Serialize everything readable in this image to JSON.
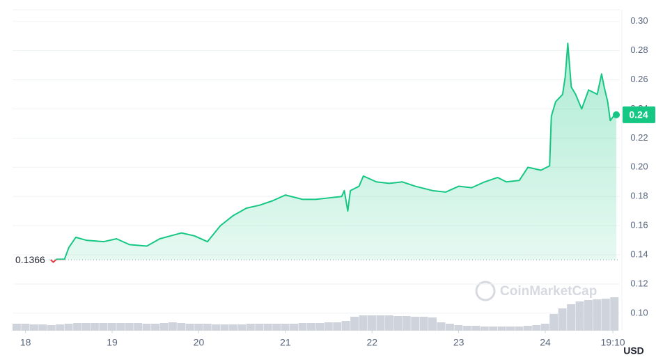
{
  "chart_data": {
    "type": "line",
    "x": [
      18.29,
      18.32,
      18.36,
      18.45,
      18.5,
      18.58,
      18.7,
      18.9,
      19.05,
      19.2,
      19.4,
      19.55,
      19.8,
      19.95,
      20.1,
      20.25,
      20.4,
      20.55,
      20.7,
      20.85,
      21.0,
      21.2,
      21.35,
      21.5,
      21.65,
      21.68,
      21.72,
      21.75,
      21.85,
      21.9,
      22.05,
      22.2,
      22.35,
      22.5,
      22.7,
      22.85,
      23.0,
      23.15,
      23.3,
      23.45,
      23.55,
      23.7,
      23.8,
      23.95,
      24.05,
      24.07,
      24.12,
      24.2,
      24.23,
      24.26,
      24.3,
      24.35,
      24.42,
      24.5,
      24.6,
      24.65,
      24.68,
      24.72,
      24.75,
      24.8,
      24.82
    ],
    "series": [
      {
        "color": "#16c784",
        "values": [
          0.1366,
          0.135,
          0.137,
          0.137,
          0.145,
          0.152,
          0.15,
          0.149,
          0.151,
          0.147,
          0.146,
          0.151,
          0.155,
          0.153,
          0.149,
          0.16,
          0.167,
          0.172,
          0.174,
          0.177,
          0.181,
          0.178,
          0.178,
          0.179,
          0.18,
          0.184,
          0.17,
          0.184,
          0.187,
          0.194,
          0.19,
          0.189,
          0.19,
          0.187,
          0.184,
          0.183,
          0.187,
          0.186,
          0.19,
          0.193,
          0.19,
          0.191,
          0.2,
          0.198,
          0.201,
          0.235,
          0.245,
          0.25,
          0.262,
          0.285,
          0.255,
          0.25,
          0.24,
          0.253,
          0.25,
          0.264,
          0.255,
          0.245,
          0.232,
          0.236,
          0.236
        ]
      }
    ],
    "down_color": "#ea3943",
    "baseline": 0.1366,
    "last_price": {
      "value": 0.236,
      "label": "0.24"
    },
    "ylim": [
      0.088,
      0.308
    ],
    "yticks": [
      {
        "value": 0.1,
        "label": "0.10"
      },
      0.12,
      0.14,
      0.16,
      0.18,
      {
        "value": 0.2,
        "label": "0.20"
      },
      0.22,
      0.24,
      0.26,
      0.28,
      {
        "value": 0.3,
        "label": "0.30"
      }
    ],
    "xlim": [
      17.85,
      24.86
    ],
    "xticks": [
      18,
      19,
      20,
      21,
      22,
      23,
      24,
      {
        "value": 24.78,
        "label": "19:10"
      }
    ],
    "currency": "USD",
    "watermark": "CoinMarketCap",
    "grid": true,
    "volume": {
      "color": "#cfd3dc",
      "x": [
        17.9,
        18.0,
        18.1,
        18.2,
        18.3,
        18.4,
        18.5,
        18.6,
        18.7,
        18.8,
        18.9,
        19.0,
        19.1,
        19.2,
        19.3,
        19.4,
        19.5,
        19.6,
        19.7,
        19.8,
        19.9,
        20.0,
        20.1,
        20.2,
        20.3,
        20.4,
        20.5,
        20.6,
        20.7,
        20.8,
        20.9,
        21.0,
        21.1,
        21.2,
        21.3,
        21.4,
        21.5,
        21.6,
        21.7,
        21.8,
        21.9,
        22.0,
        22.1,
        22.2,
        22.3,
        22.4,
        22.5,
        22.6,
        22.7,
        22.8,
        22.9,
        23.0,
        23.1,
        23.2,
        23.3,
        23.4,
        23.5,
        23.6,
        23.7,
        23.8,
        23.9,
        24.0,
        24.1,
        24.2,
        24.3,
        24.4,
        24.5,
        24.6,
        24.7,
        24.8
      ],
      "values": [
        10,
        10,
        9,
        9,
        8,
        9,
        10,
        11,
        11,
        11,
        11,
        11,
        11,
        11,
        11,
        10,
        10,
        11,
        12,
        11,
        10,
        10,
        10,
        9,
        9,
        9,
        9,
        10,
        10,
        10,
        10,
        10,
        10,
        11,
        11,
        11,
        12,
        12,
        14,
        20,
        22,
        22,
        22,
        22,
        21,
        21,
        20,
        20,
        19,
        12,
        10,
        8,
        7,
        7,
        6,
        6,
        6,
        6,
        6,
        7,
        8,
        10,
        24,
        32,
        38,
        42,
        44,
        45,
        46,
        48
      ]
    }
  }
}
